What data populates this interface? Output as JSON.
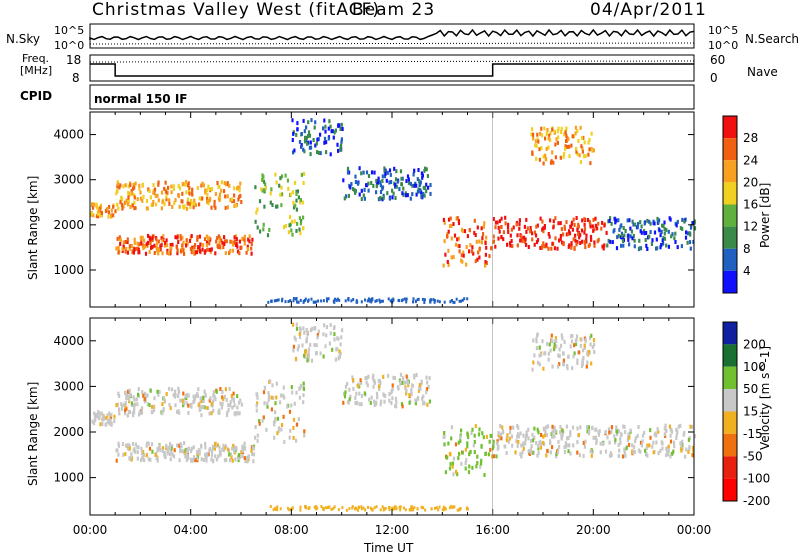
{
  "header": {
    "station": "Christmas Valley West (fitACF)",
    "beam": "Beam 23",
    "date": "04/Apr/2011"
  },
  "top_panels": {
    "nsky_label": "N.Sky",
    "nsky_tick_top": "10^5",
    "nsky_tick_bottom": "10^0",
    "nsearch_label": "N.Search",
    "nsearch_tick_top": "10^5",
    "nsearch_tick_bottom": "10^0",
    "freq_label": "Freq.",
    "freq_unit": "[MHz]",
    "freq_ticks": [
      "18",
      "8"
    ],
    "nave_label": "Nave",
    "nave_ticks": [
      "60",
      "0"
    ],
    "cpid_label": "CPID",
    "cpid_value": "normal 150 IF"
  },
  "chart_data": [
    {
      "type": "heatmap",
      "panel": "power",
      "ylabel": "Slant Range [km]",
      "xlabel": "Time UT",
      "xlim": [
        "00:00",
        "24:00"
      ],
      "ylim": [
        180,
        4500
      ],
      "yticks": [
        1000,
        2000,
        3000,
        4000
      ],
      "xticks": [
        "00:00",
        "04:00",
        "08:00",
        "12:00",
        "16:00",
        "20:00",
        "00:00"
      ],
      "colorbar": {
        "label": "Power [dB]",
        "ticks": [
          4,
          8,
          12,
          16,
          20,
          24,
          28
        ],
        "colors": [
          "#1010ff",
          "#2060c0",
          "#3a8a4a",
          "#60b040",
          "#f0d020",
          "#f8a020",
          "#f06010",
          "#f01010"
        ]
      },
      "bands": [
        {
          "t": [
            0.0,
            1.0
          ],
          "r": [
            2200,
            2500
          ],
          "level": 5
        },
        {
          "t": [
            1.0,
            6.5
          ],
          "r": [
            1400,
            1800
          ],
          "level": 6
        },
        {
          "t": [
            6.5,
            8.5
          ],
          "r": [
            1800,
            3200
          ],
          "level": 3
        },
        {
          "t": [
            1.0,
            6.0
          ],
          "r": [
            2400,
            3000
          ],
          "level": 5
        },
        {
          "t": [
            8.0,
            10.0
          ],
          "r": [
            3600,
            4400
          ],
          "level": 1
        },
        {
          "t": [
            10.0,
            13.5
          ],
          "r": [
            2600,
            3300
          ],
          "level": 1
        },
        {
          "t": [
            14.0,
            16.0
          ],
          "r": [
            1100,
            2200
          ],
          "level": 6
        },
        {
          "t": [
            16.0,
            20.5
          ],
          "r": [
            1500,
            2200
          ],
          "level": 7
        },
        {
          "t": [
            20.5,
            24.0
          ],
          "r": [
            1500,
            2200
          ],
          "level": 1
        },
        {
          "t": [
            17.5,
            20.0
          ],
          "r": [
            3400,
            4200
          ],
          "level": 5
        }
      ]
    },
    {
      "type": "heatmap",
      "panel": "velocity",
      "ylabel": "Slant Range [km]",
      "xlabel": "Time UT",
      "xlim": [
        "00:00",
        "24:00"
      ],
      "ylim": [
        180,
        4500
      ],
      "yticks": [
        1000,
        2000,
        3000,
        4000
      ],
      "xticks": [
        "00:00",
        "04:00",
        "08:00",
        "12:00",
        "16:00",
        "20:00",
        "00:00"
      ],
      "colorbar": {
        "label": "Velocity [m s^-1]",
        "ticks": [
          200,
          100,
          50,
          15,
          -15,
          -50,
          -100,
          -200
        ],
        "colors": [
          "#1020a0",
          "#1a7030",
          "#70c030",
          "#c8c8c8",
          "#f0b020",
          "#f07010",
          "#e82010",
          "#ff0000"
        ]
      }
    }
  ]
}
